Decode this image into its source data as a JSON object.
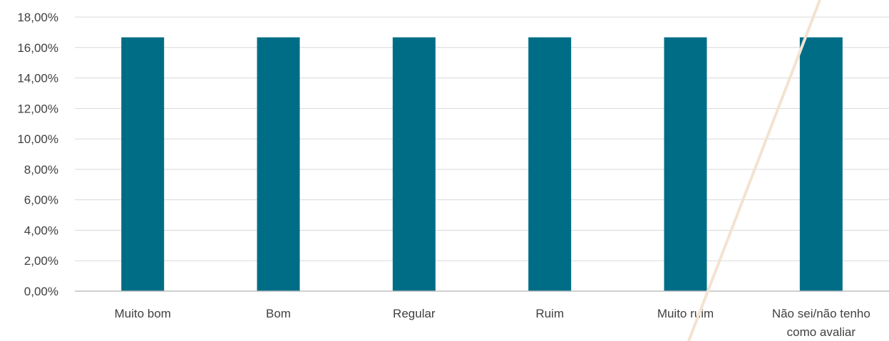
{
  "chart_data": {
    "type": "bar",
    "categories": [
      [
        "Muito bom"
      ],
      [
        "Bom"
      ],
      [
        "Regular"
      ],
      [
        "Ruim"
      ],
      [
        "Muito ruim"
      ],
      [
        "Não sei/não tenho",
        "como avaliar"
      ]
    ],
    "values": [
      16.67,
      16.67,
      16.67,
      16.67,
      16.67,
      16.67
    ],
    "ylim": [
      0,
      18
    ],
    "yticks": [
      "0,00%",
      "2,00%",
      "4,00%",
      "6,00%",
      "8,00%",
      "10,00%",
      "12,00%",
      "14,00%",
      "16,00%",
      "18,00%"
    ],
    "title": "",
    "xlabel": "",
    "ylabel": "",
    "grid": true,
    "legend": "none"
  },
  "colors": {
    "bar": "#006d86",
    "grid": "#d9d9d9",
    "axis": "#bfbfbf",
    "text": "#404040",
    "decor_line": "#f3e3d2"
  }
}
